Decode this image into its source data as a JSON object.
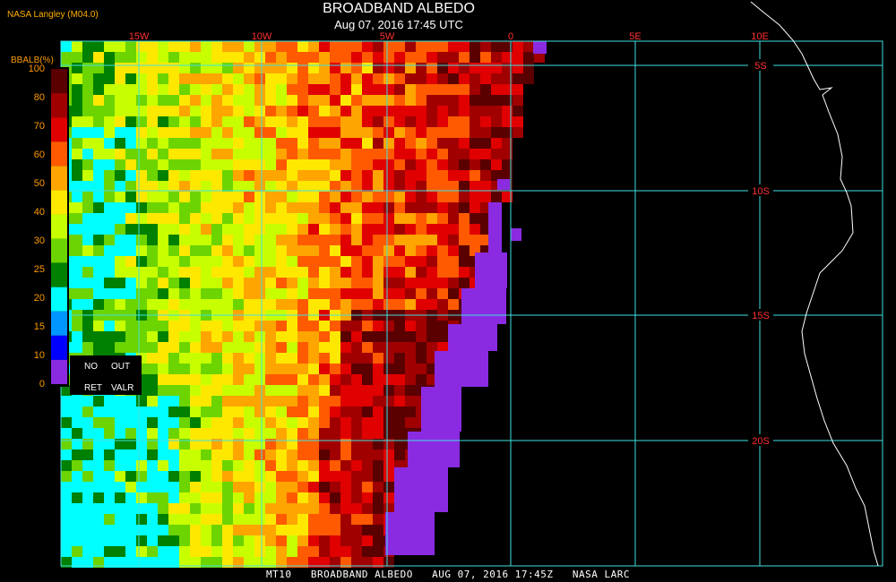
{
  "header": {
    "org": "NASA Langley (M04.0)",
    "title": "BROADBAND ALBEDO",
    "datetime": "Aug 07, 2016 17:45 UTC"
  },
  "footer": {
    "text": "MT10   BROADBAND ALBEDO   AUG 07, 2016 17:45Z   NASA LARC"
  },
  "colorbar": {
    "title": "BBALB(%)",
    "ticks": [
      "100",
      "80",
      "70",
      "60",
      "50",
      "40",
      "30",
      "25",
      "20",
      "15",
      "10",
      "0"
    ],
    "colors": [
      "#5a0000",
      "#a00000",
      "#e00000",
      "#ff5a00",
      "#ffa500",
      "#ffe800",
      "#c8ff00",
      "#6cd400",
      "#008000",
      "#00ffff",
      "#0096ff",
      "#0000ff",
      "#8a2be2"
    ],
    "no_data": {
      "no": "NO",
      "out": "OUT",
      "ret": "RET",
      "valr": "VALR"
    }
  },
  "map": {
    "lon_labels": [
      "15W",
      "10W",
      "5W",
      "0",
      "5E",
      "10E"
    ],
    "lat_labels": [
      "5S",
      "10S",
      "15S",
      "20S"
    ],
    "grid_color": "#40e0e0",
    "label_color": "#ff3030",
    "coast_color": "#ffffff"
  }
}
